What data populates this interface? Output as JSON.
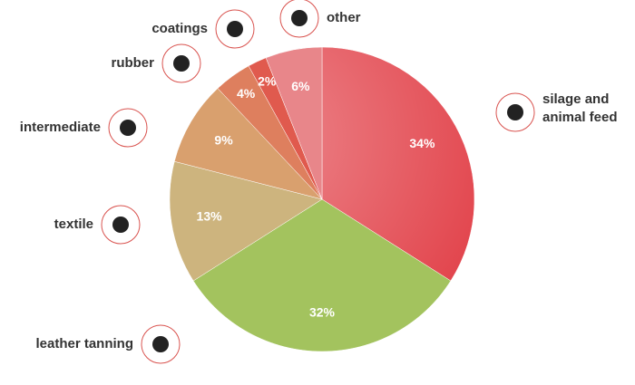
{
  "chart_data": {
    "type": "pie",
    "categories": [
      "silage and animal feed",
      "leather tanning",
      "textile",
      "intermediate",
      "rubber",
      "coatings",
      "other"
    ],
    "values": [
      34,
      32,
      13,
      9,
      4,
      2,
      6
    ],
    "value_labels": [
      "34%",
      "32%",
      "13%",
      "9%",
      "4%",
      "2%",
      "6%"
    ],
    "colors": [
      "#e2444c",
      "#a3c35e",
      "#cdb47e",
      "#d9a06e",
      "#de7f5e",
      "#e05a4e",
      "#e8868a"
    ]
  }
}
